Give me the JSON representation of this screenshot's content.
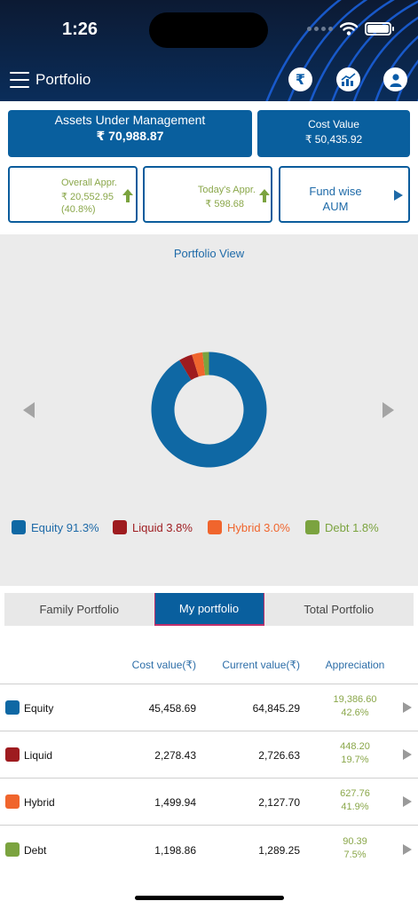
{
  "status": {
    "time": "1:26"
  },
  "header": {
    "title": "Portfolio",
    "icons": [
      "rupee-icon",
      "chart-icon",
      "profile-icon"
    ]
  },
  "aum": {
    "label": "Assets Under Management",
    "value": "₹ 70,988.87"
  },
  "cost": {
    "label": "Cost Value",
    "value": "₹ 50,435.92"
  },
  "overall": {
    "label": "Overall Appr.",
    "value": "₹ 20,552.95",
    "pct": "(40.8%)"
  },
  "today": {
    "label": "Today's Appr.",
    "value": "₹ 598.68"
  },
  "fundwise": {
    "line1": "Fund wise",
    "line2": "AUM"
  },
  "portfolio_view": {
    "title": "Portfolio View",
    "legend": [
      {
        "label": "Equity 91.3%",
        "color": "#0f68a4"
      },
      {
        "label": "Liquid 3.8%",
        "color": "#9e1b1f"
      },
      {
        "label": "Hybrid 3.0%",
        "color": "#f0652d"
      },
      {
        "label": "Debt 1.8%",
        "color": "#7ba33f"
      }
    ]
  },
  "chart_data": {
    "type": "pie",
    "categories": [
      "Equity",
      "Liquid",
      "Hybrid",
      "Debt"
    ],
    "values": [
      91.3,
      3.8,
      3.0,
      1.8
    ],
    "colors": [
      "#0f68a4",
      "#9e1b1f",
      "#f0652d",
      "#7ba33f"
    ],
    "title": "Portfolio View",
    "donut": true
  },
  "tabs": [
    "Family Portfolio",
    "My portfolio",
    "Total Portfolio"
  ],
  "table": {
    "headers": {
      "cost": "Cost value(₹)",
      "current": "Current value(₹)",
      "appreciation": "Appreciation"
    },
    "rows": [
      {
        "name": "Equity",
        "cost": "45,458.69",
        "current": "64,845.29",
        "appr": "19,386.60",
        "pct": "42.6%",
        "color": "#0f68a4"
      },
      {
        "name": "Liquid",
        "cost": "2,278.43",
        "current": "2,726.63",
        "appr": "448.20",
        "pct": "19.7%",
        "color": "#9e1b1f"
      },
      {
        "name": "Hybrid",
        "cost": "1,499.94",
        "current": "2,127.70",
        "appr": "627.76",
        "pct": "41.9%",
        "color": "#f0652d"
      },
      {
        "name": "Debt",
        "cost": "1,198.86",
        "current": "1,289.25",
        "appr": "90.39",
        "pct": "7.5%",
        "color": "#7ba33f"
      }
    ]
  }
}
